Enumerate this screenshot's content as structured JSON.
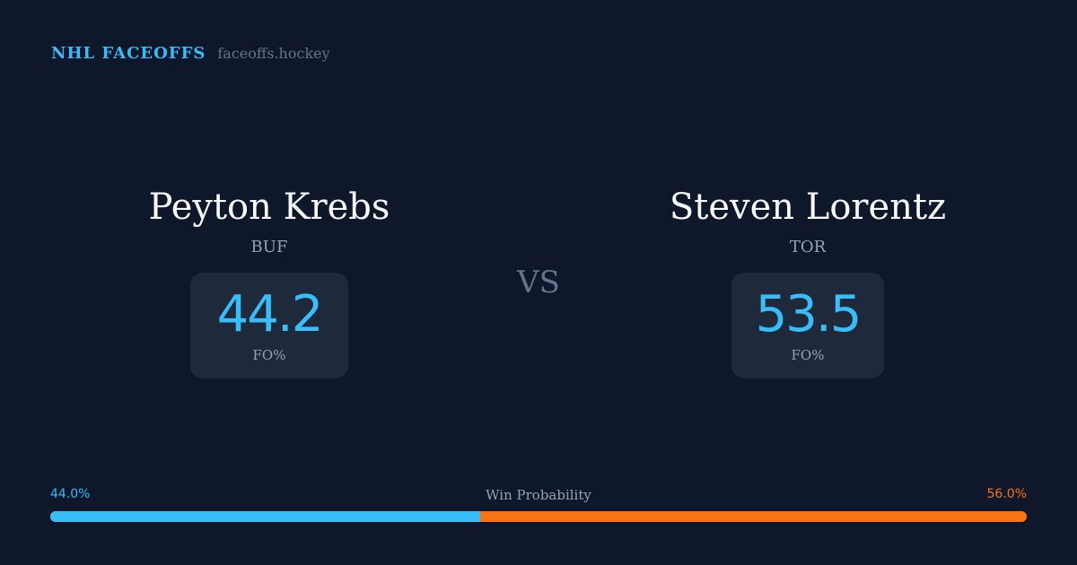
{
  "brand": {
    "name": "NHL FACEOFFS",
    "site": "faceoffs.hockey"
  },
  "players": [
    {
      "name": "Peyton Krebs",
      "team": "BUF",
      "fo_pct": "44.2",
      "fo_label": "FO%"
    },
    {
      "name": "Steven Lorentz",
      "team": "TOR",
      "fo_pct": "53.5",
      "fo_label": "FO%"
    }
  ],
  "vs": "VS",
  "win_probability": {
    "label": "Win Probability",
    "left": "44.0%",
    "right": "56.0%",
    "left_value": 44.0,
    "right_value": 56.0
  },
  "colors": {
    "background": "#0f172a",
    "accent": "#38bdf8",
    "opponent": "#f97316",
    "card": "#1e293b"
  }
}
